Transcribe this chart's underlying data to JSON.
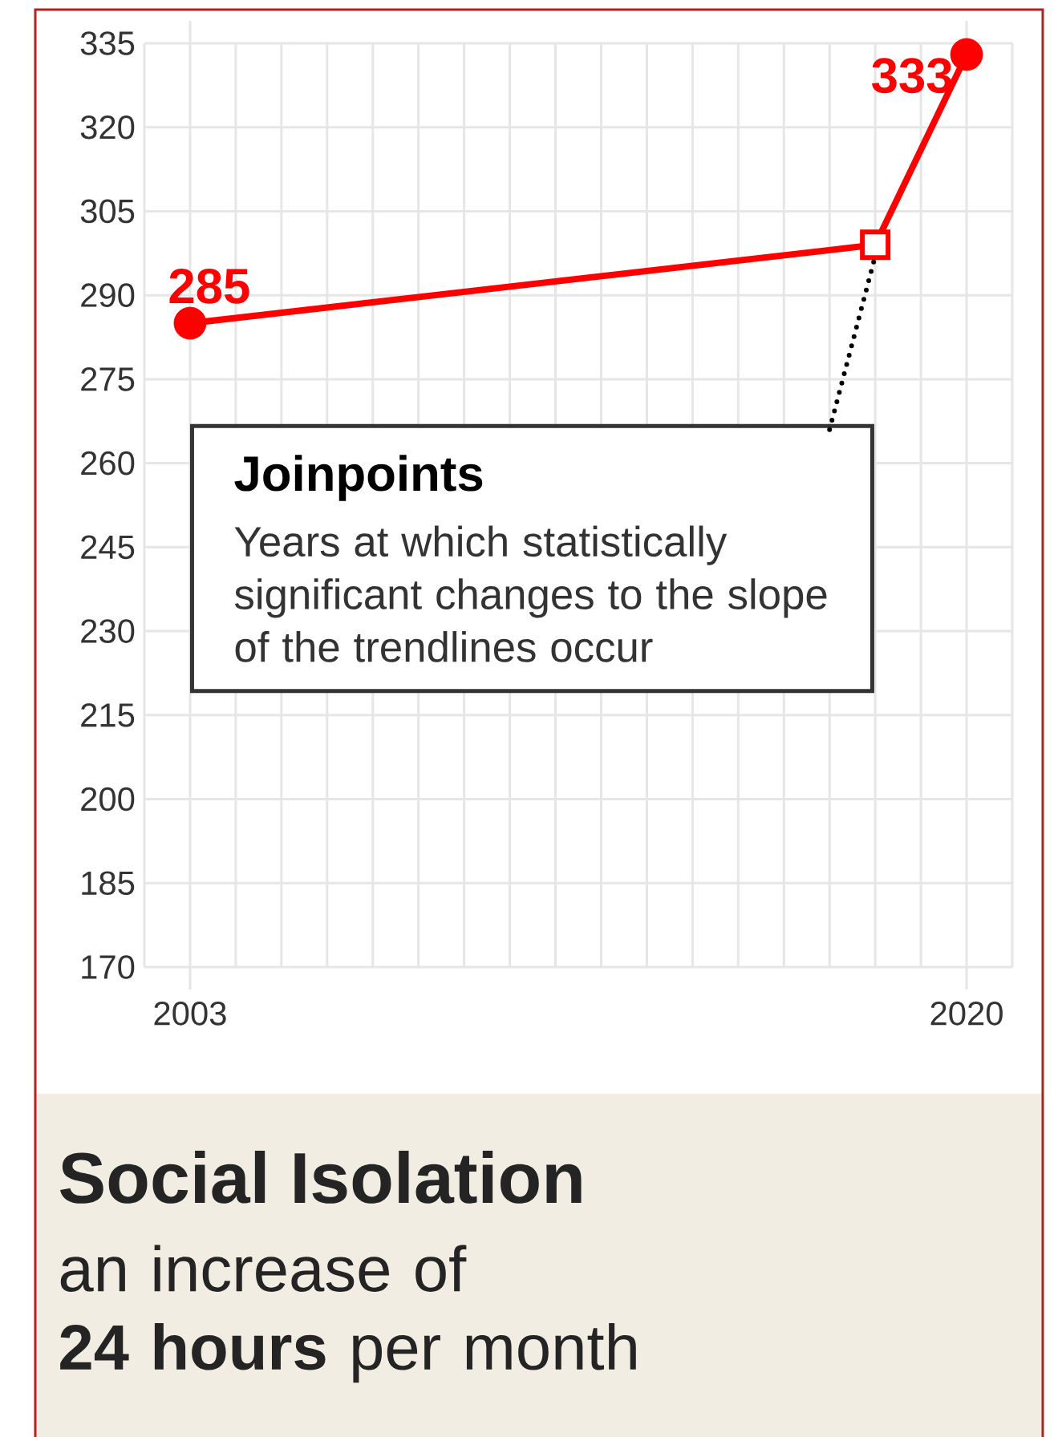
{
  "chart_data": {
    "type": "line",
    "title": "Social Isolation",
    "subtitle": "an increase of **24 hours** per month",
    "xlim": [
      2002,
      2021
    ],
    "ylim": [
      170,
      335
    ],
    "xticks": [
      {
        "value": 2002,
        "label": null
      },
      2003,
      {
        "value": 2004,
        "label": null
      },
      {
        "value": 2005,
        "label": null
      },
      {
        "value": 2006,
        "label": null
      },
      {
        "value": 2007,
        "label": null
      },
      {
        "value": 2008,
        "label": null
      },
      {
        "value": 2009,
        "label": null
      },
      {
        "value": 2010,
        "label": null
      },
      {
        "value": 2011,
        "label": null
      },
      {
        "value": 2012,
        "label": null
      },
      {
        "value": 2013,
        "label": null
      },
      {
        "value": 2014,
        "label": null
      },
      {
        "value": 2015,
        "label": null
      },
      {
        "value": 2016,
        "label": null
      },
      {
        "value": 2017,
        "label": null
      },
      {
        "value": 2018,
        "label": null
      },
      {
        "value": 2019,
        "label": null
      },
      2020,
      {
        "value": 2021,
        "label": null
      }
    ],
    "yticks": [
      170,
      185,
      200,
      215,
      230,
      245,
      260,
      275,
      290,
      305,
      320,
      335
    ],
    "grid": true,
    "annotations": [
      "Joinpoints",
      "Years at which statistically significant changes to the slope of the trendlines occur"
    ],
    "series": [
      {
        "x": [
          2003,
          2018,
          2020
        ],
        "values": [
          285,
          299,
          333
        ],
        "color": "#ff0000",
        "marker": "none"
      },
      {
        "type": "scatter",
        "x": [
          2003,
          2020
        ],
        "values": [
          285,
          333
        ],
        "color": "#ff0000",
        "marker": "circle",
        "value_labels": [
          "285",
          "333"
        ]
      },
      {
        "type": "scatter",
        "x": [
          2018
        ],
        "values": [
          299
        ],
        "color": "#ff0000",
        "marker": "square"
      },
      {
        "type": "line",
        "x": [
          2017,
          2018
        ],
        "values": [
          266,
          297
        ],
        "color": "#000000",
        "marker": "none",
        "line_style": "dotted"
      }
    ]
  }
}
